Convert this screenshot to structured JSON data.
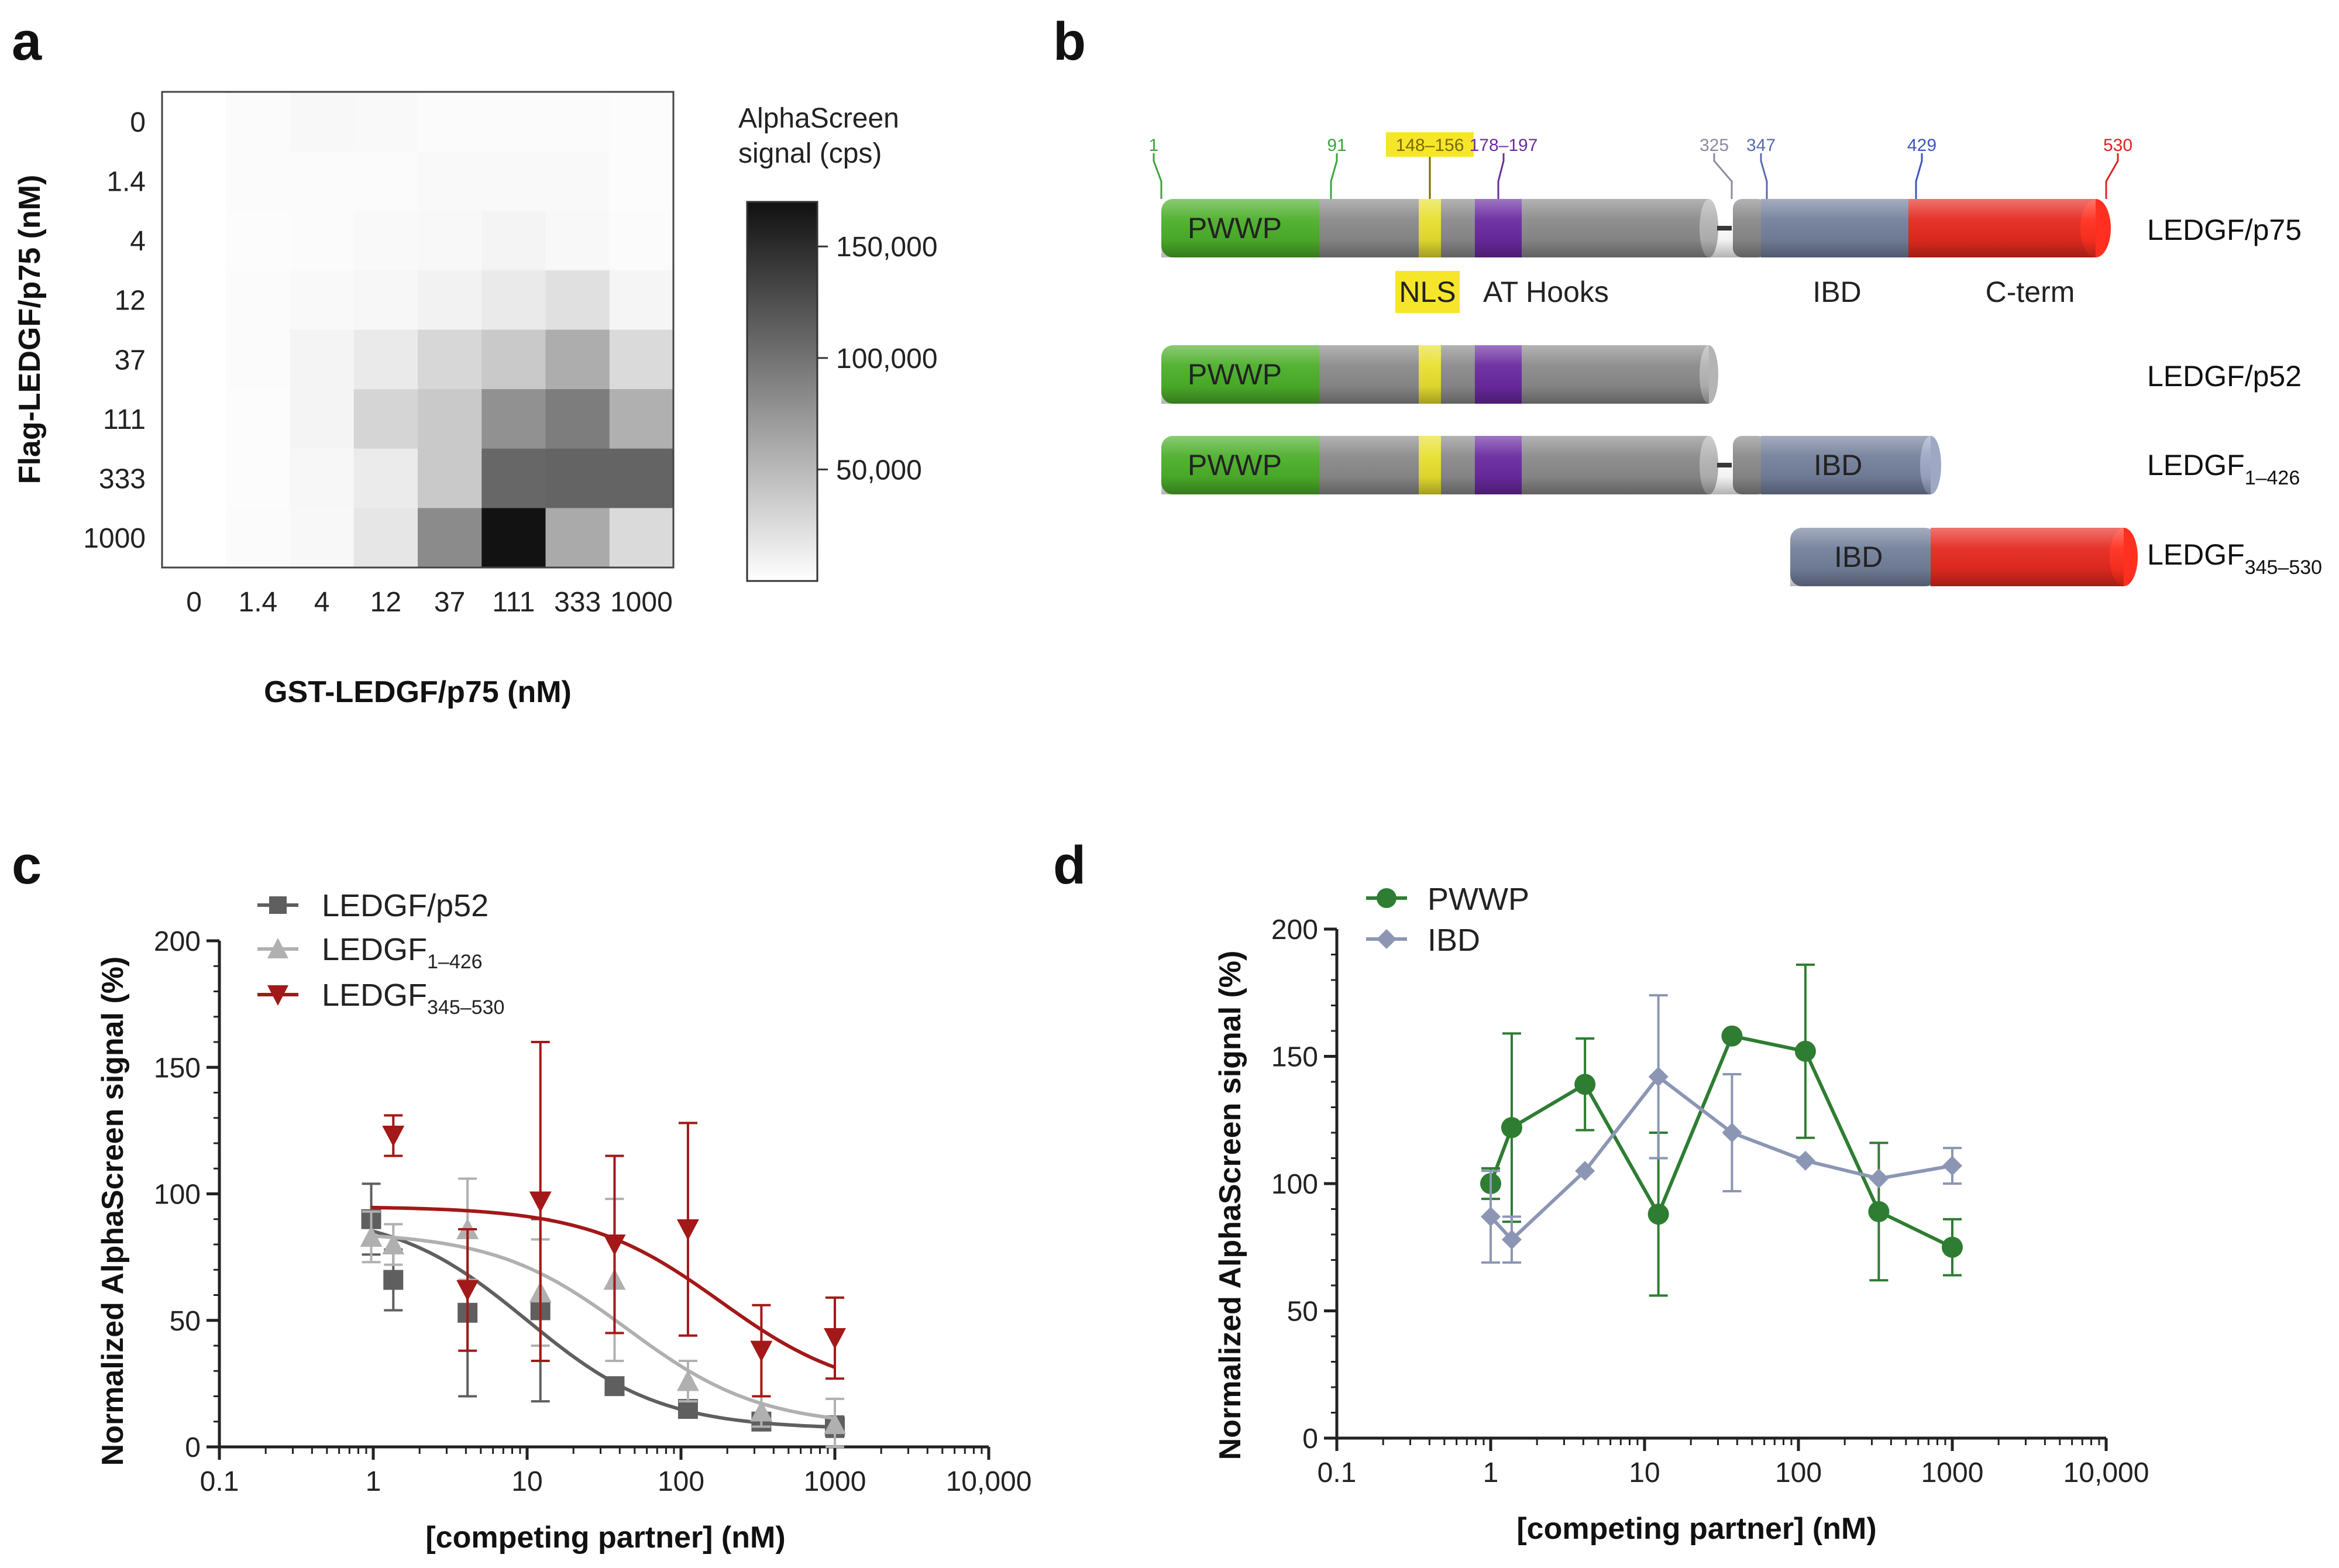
{
  "panel_labels": {
    "a": "a",
    "b": "b",
    "c": "c",
    "d": "d"
  },
  "chart_data": [
    {
      "id": "a",
      "type": "heatmap",
      "x_categories": [
        "0",
        "1.4",
        "4",
        "12",
        "37",
        "111",
        "333",
        "1000"
      ],
      "y_categories": [
        "0",
        "1.4",
        "4",
        "12",
        "37",
        "111",
        "333",
        "1000"
      ],
      "xlabel": "GST-LEDGF/p75 (nM)",
      "ylabel": "Flag-LEDGF/p75 (nM)",
      "colorbar_title_1": "AlphaScreen",
      "colorbar_title_2": "signal (cps)",
      "colorbar_ticks": [
        {
          "value": 50000,
          "label": "50,000"
        },
        {
          "value": 100000,
          "label": "100,000"
        },
        {
          "value": 150000,
          "label": "150,000"
        }
      ],
      "color_range": [
        0,
        170000
      ],
      "values": [
        [
          0,
          3000,
          5000,
          4000,
          3000,
          3000,
          3000,
          2000
        ],
        [
          0,
          3000,
          3000,
          3000,
          4000,
          4000,
          4000,
          2000
        ],
        [
          0,
          2000,
          3000,
          4000,
          5000,
          8000,
          5000,
          3000
        ],
        [
          0,
          3000,
          4000,
          6000,
          9000,
          15000,
          22000,
          7000
        ],
        [
          0,
          3000,
          8000,
          15000,
          28000,
          38000,
          58000,
          26000
        ],
        [
          0,
          2000,
          8000,
          30000,
          38000,
          78000,
          92000,
          56000
        ],
        [
          0,
          2000,
          6000,
          14000,
          38000,
          108000,
          110000,
          110000
        ],
        [
          0,
          3000,
          5000,
          18000,
          82000,
          168000,
          60000,
          26000
        ]
      ]
    },
    {
      "id": "c",
      "type": "scatter",
      "xscale": "log",
      "xlim": [
        0.1,
        10000
      ],
      "ylim": [
        0,
        200
      ],
      "xticks": [
        {
          "value": 0.1,
          "label": "0.1"
        },
        {
          "value": 1,
          "label": "1"
        },
        {
          "value": 10,
          "label": "10"
        },
        {
          "value": 100,
          "label": "100"
        },
        {
          "value": 1000,
          "label": "1000"
        },
        {
          "value": 10000,
          "label": "10,000"
        }
      ],
      "yticks": [
        0,
        50,
        100,
        150,
        200
      ],
      "xlabel": "[competing partner] (nM)",
      "ylabel": "Normalized AlphaScreen signal (%)",
      "series": [
        {
          "name": "LEDGF/p52",
          "name_main": "LEDGF/p52",
          "name_sub": "",
          "color": "#5f5f5f",
          "marker": "square",
          "x": [
            0.97,
            1.35,
            4.1,
            12.2,
            37,
            111,
            333,
            1000
          ],
          "y": [
            90,
            66,
            53,
            54,
            24,
            15,
            10,
            8
          ],
          "err": [
            14,
            12,
            33,
            36,
            3,
            3,
            3,
            4
          ],
          "fit": {
            "top": 93,
            "bottom": 7,
            "ec50": 10,
            "hill": 1
          }
        },
        {
          "name": "LEDGF1–426",
          "name_main": "LEDGF",
          "name_sub": "1–426",
          "color": "#b0b0b0",
          "marker": "triangle-up",
          "x": [
            0.97,
            1.35,
            4.1,
            12.2,
            37,
            111,
            333,
            1000
          ],
          "y": [
            83,
            80,
            86,
            61,
            66,
            26,
            14,
            9
          ],
          "err": [
            10,
            8,
            20,
            21,
            32,
            8,
            6,
            10
          ],
          "fit": {
            "top": 85,
            "bottom": 8,
            "ec50": 45,
            "hill": 1
          }
        },
        {
          "name": "LEDGF345–530",
          "name_main": "LEDGF",
          "name_sub": "345–530",
          "color": "#a31818",
          "marker": "triangle-down",
          "x": [
            1.35,
            4.1,
            12.2,
            37,
            111,
            333,
            1000
          ],
          "y": [
            123,
            62,
            97,
            80,
            86,
            38,
            43
          ],
          "err": [
            8,
            24,
            63,
            35,
            42,
            18,
            16
          ],
          "fit": {
            "top": 95,
            "bottom": 20,
            "ec50": 180,
            "hill": 1
          }
        }
      ]
    },
    {
      "id": "d",
      "type": "line",
      "xscale": "log",
      "xlim": [
        0.1,
        10000
      ],
      "ylim": [
        0,
        200
      ],
      "xticks": [
        {
          "value": 0.1,
          "label": "0.1"
        },
        {
          "value": 1,
          "label": "1"
        },
        {
          "value": 10,
          "label": "10"
        },
        {
          "value": 100,
          "label": "100"
        },
        {
          "value": 1000,
          "label": "1000"
        },
        {
          "value": 10000,
          "label": "10,000"
        }
      ],
      "yticks": [
        0,
        50,
        100,
        150,
        200
      ],
      "xlabel": "[competing partner] (nM)",
      "ylabel": "Normalized AlphaScreen signal (%)",
      "series": [
        {
          "name": "PWWP",
          "color": "#2e7d32",
          "marker": "circle",
          "x": [
            1,
            1.37,
            4.1,
            12.3,
            37,
            111,
            333,
            1000
          ],
          "y": [
            100,
            122,
            139,
            88,
            158,
            152,
            89,
            75
          ],
          "err": [
            6,
            37,
            18,
            32,
            0,
            34,
            27,
            11
          ]
        },
        {
          "name": "IBD",
          "color": "#8c96b4",
          "marker": "diamond",
          "x": [
            1,
            1.37,
            4.1,
            12.3,
            37,
            111,
            333,
            1000
          ],
          "y": [
            87,
            78,
            105,
            142,
            120,
            109,
            102,
            107
          ],
          "err": [
            18,
            9,
            0,
            32,
            23,
            0,
            0,
            7
          ]
        }
      ]
    }
  ],
  "diagram": {
    "positions": [
      {
        "label": "1",
        "color": "#3aa53a"
      },
      {
        "label": "91",
        "color": "#3aa53a"
      },
      {
        "label": "148–156",
        "color": "#7a6a00",
        "highlight": "#f5e62a"
      },
      {
        "label": "178–197",
        "color": "#6a2ea0"
      },
      {
        "label": "325",
        "color": "#8a8aa0"
      },
      {
        "label": "347",
        "color": "#5a6ab0"
      },
      {
        "label": "429",
        "color": "#3a55c0"
      },
      {
        "label": "530",
        "color": "#e02020"
      }
    ],
    "domain_labels": {
      "nls": "NLS",
      "at_hooks": "AT Hooks",
      "ibd": "IBD",
      "cterm": "C-term"
    },
    "segment_labels": {
      "pwwp": "PWWP",
      "ibd": "IBD"
    },
    "constructs": [
      {
        "name_main": "LEDGF/p75",
        "name_sub": ""
      },
      {
        "name_main": "LEDGF/p52",
        "name_sub": ""
      },
      {
        "name_main": "LEDGF",
        "name_sub": "1–426"
      },
      {
        "name_main": "LEDGF",
        "name_sub": "345–530"
      }
    ],
    "colors": {
      "pwwp": "#4caf2a",
      "linker": "#8a8a8a",
      "nls": "#e8e030",
      "athook": "#6a2aa0",
      "gap": "#b4b4b4",
      "ibd": "#74809c",
      "cterm": "#e52a20"
    }
  }
}
